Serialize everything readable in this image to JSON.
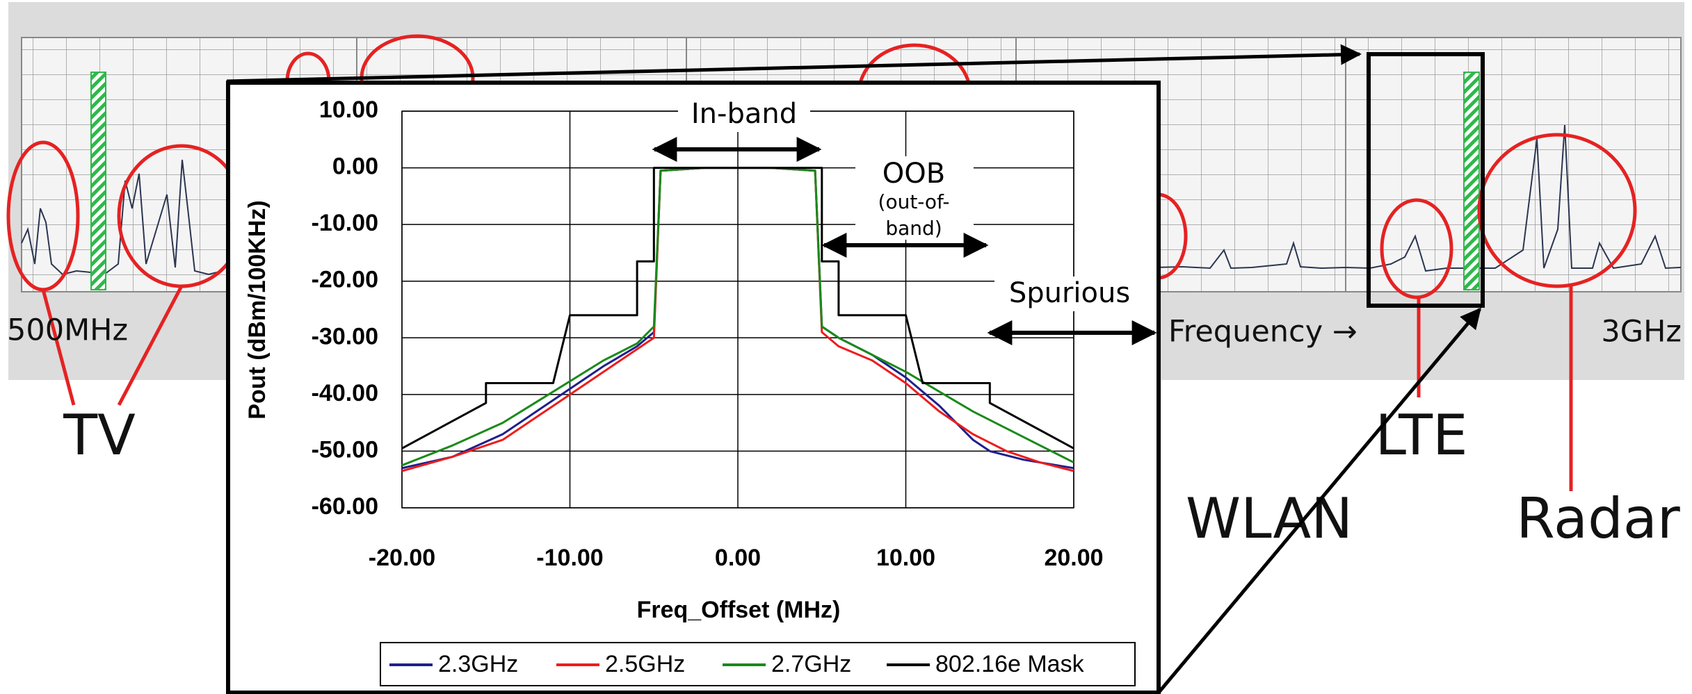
{
  "figure": {
    "labels": [
      "500MHz",
      "Frequency →",
      "3GHz",
      "TV",
      "LTE",
      "Radar",
      "WLAN"
    ]
  },
  "chart_data": {
    "type": "line",
    "x_label": "Freq_Offset (MHz)",
    "y_label": "Pout (dBm/100KHz)",
    "annotations": [
      "In-band",
      "OOB",
      "(out-of-",
      "band)",
      "Spurious"
    ],
    "xlim": [
      -20,
      20
    ],
    "ylim": [
      -60,
      10
    ],
    "grid": true,
    "xticks": [
      {
        "value": -20,
        "label": "-20.00"
      },
      {
        "value": -10,
        "label": "-10.00"
      },
      {
        "value": 0,
        "label": "0.00"
      },
      {
        "value": 10,
        "label": "10.00"
      },
      {
        "value": 20,
        "label": "20.00"
      }
    ],
    "yticks": [
      {
        "value": 10,
        "label": "10.00"
      },
      {
        "value": 0,
        "label": "0.00"
      },
      {
        "value": -10,
        "label": "-10.00"
      },
      {
        "value": -20,
        "label": "-20.00"
      },
      {
        "value": -30,
        "label": "-30.00"
      },
      {
        "value": -40,
        "label": "-40.00"
      },
      {
        "value": -50,
        "label": "-50.00"
      },
      {
        "value": -60,
        "label": "-60.00"
      }
    ],
    "series": [
      {
        "name": "2.3GHz",
        "color": "#1f1f8f",
        "x": [
          -20,
          -17,
          -14,
          -11,
          -8,
          -6,
          -5,
          -4.6,
          -2,
          0,
          2,
          4.6,
          5,
          6,
          8,
          10,
          12,
          14,
          15,
          17,
          20
        ],
        "values": [
          -53,
          -51,
          -47,
          -41,
          -35,
          -31.5,
          -29,
          -0.5,
          0,
          0,
          0,
          -0.5,
          -28,
          -30,
          -33,
          -37,
          -42,
          -48,
          -50,
          -51.5,
          -53
        ]
      },
      {
        "name": "2.5GHz",
        "color": "#ee1c1c",
        "x": [
          -20,
          -17,
          -14,
          -11,
          -8,
          -6,
          -5,
          -4.6,
          -2,
          0,
          2,
          4.6,
          5,
          6,
          8,
          10,
          12,
          14,
          16,
          18,
          20
        ],
        "values": [
          -53.5,
          -51,
          -48,
          -42,
          -36,
          -32,
          -30,
          -0.5,
          0,
          0,
          0,
          -0.5,
          -29,
          -31.5,
          -34,
          -38,
          -43,
          -47,
          -50,
          -52,
          -53.5
        ]
      },
      {
        "name": "2.7GHz",
        "color": "#1a8a1a",
        "x": [
          -20,
          -17,
          -14,
          -11,
          -8,
          -6,
          -5,
          -4.6,
          -2,
          0,
          2,
          4.6,
          5,
          6,
          8,
          10,
          12,
          14,
          16,
          18,
          20
        ],
        "values": [
          -52.5,
          -49,
          -45,
          -39.5,
          -34,
          -31,
          -28,
          -0.5,
          0,
          0,
          0,
          -0.5,
          -28,
          -30,
          -33,
          -36,
          -39.5,
          -43,
          -46,
          -49,
          -52
        ]
      },
      {
        "name": "802.16e Mask",
        "color": "#000000",
        "x": [
          -20,
          -15,
          -15,
          -11,
          -10,
          -6,
          -6,
          -5,
          -5,
          5,
          5,
          6,
          6,
          10,
          11,
          15,
          15,
          20
        ],
        "values": [
          -49.5,
          -41.5,
          -38,
          -38,
          -26,
          -26,
          -16.5,
          -16.5,
          0,
          0,
          -16.5,
          -16.5,
          -26,
          -26,
          -38,
          -38,
          -41.5,
          -49.5
        ]
      }
    ]
  }
}
